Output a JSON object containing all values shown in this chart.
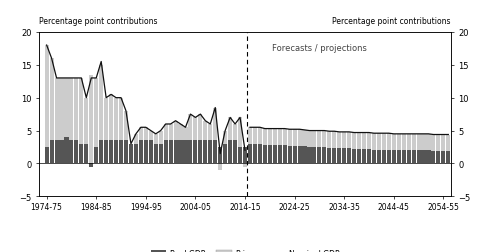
{
  "title_left": "Percentage point contributions",
  "title_right": "Percentage point contributions",
  "forecast_label": "Forecasts / projections",
  "ylim": [
    -5,
    20
  ],
  "yticks": [
    -5,
    0,
    5,
    10,
    15,
    20
  ],
  "dashed_line_x": 2014.5,
  "historical_years": [
    1974,
    1975,
    1976,
    1977,
    1978,
    1979,
    1980,
    1981,
    1982,
    1983,
    1984,
    1985,
    1986,
    1987,
    1988,
    1989,
    1990,
    1991,
    1992,
    1993,
    1994,
    1995,
    1996,
    1997,
    1998,
    1999,
    2000,
    2001,
    2002,
    2003,
    2004,
    2005,
    2006,
    2007,
    2008,
    2009,
    2010,
    2011,
    2012,
    2013,
    2014
  ],
  "real_gdp_hist": [
    2.5,
    3.5,
    3.5,
    3.5,
    4.0,
    3.5,
    3.5,
    3.0,
    3.0,
    -0.5,
    2.5,
    3.5,
    3.5,
    3.5,
    3.5,
    3.5,
    3.5,
    3.0,
    3.0,
    3.5,
    3.5,
    3.5,
    3.0,
    3.0,
    3.5,
    3.5,
    3.5,
    3.5,
    3.5,
    3.5,
    3.5,
    3.5,
    3.5,
    3.5,
    3.5,
    2.5,
    3.0,
    3.5,
    3.5,
    2.5,
    2.5
  ],
  "prices_hist": [
    15.5,
    12.5,
    9.5,
    9.5,
    9.0,
    9.5,
    9.5,
    10.0,
    7.0,
    13.5,
    10.5,
    11.5,
    6.5,
    7.0,
    6.5,
    6.5,
    4.5,
    0.0,
    1.5,
    2.0,
    2.0,
    1.5,
    1.5,
    2.0,
    2.5,
    2.5,
    3.0,
    2.5,
    2.0,
    4.0,
    3.5,
    4.0,
    3.0,
    2.5,
    5.0,
    -1.0,
    2.0,
    3.5,
    2.5,
    4.5,
    -0.5
  ],
  "nominal_gdp_hist": [
    18.0,
    16.0,
    13.0,
    13.0,
    13.0,
    13.0,
    13.0,
    13.0,
    10.0,
    13.0,
    13.0,
    15.5,
    10.0,
    10.5,
    10.0,
    10.0,
    8.0,
    3.0,
    4.5,
    5.5,
    5.5,
    5.0,
    4.5,
    5.0,
    6.0,
    6.0,
    6.5,
    6.0,
    5.5,
    7.5,
    7.0,
    7.5,
    6.5,
    6.0,
    8.5,
    1.5,
    5.0,
    7.0,
    6.0,
    7.0,
    2.0
  ],
  "projection_years": [
    2015,
    2016,
    2017,
    2018,
    2019,
    2020,
    2021,
    2022,
    2023,
    2024,
    2025,
    2026,
    2027,
    2028,
    2029,
    2030,
    2031,
    2032,
    2033,
    2034,
    2035,
    2036,
    2037,
    2038,
    2039,
    2040,
    2041,
    2042,
    2043,
    2044,
    2045,
    2046,
    2047,
    2048,
    2049,
    2050,
    2051,
    2052,
    2053,
    2054,
    2055
  ],
  "real_gdp_proj": [
    3.0,
    3.0,
    3.0,
    2.8,
    2.8,
    2.8,
    2.8,
    2.8,
    2.7,
    2.7,
    2.7,
    2.6,
    2.5,
    2.5,
    2.5,
    2.5,
    2.4,
    2.4,
    2.3,
    2.3,
    2.3,
    2.2,
    2.2,
    2.2,
    2.2,
    2.1,
    2.1,
    2.1,
    2.1,
    2.0,
    2.0,
    2.0,
    2.0,
    2.0,
    2.0,
    2.0,
    2.0,
    1.9,
    1.9,
    1.9,
    1.9
  ],
  "prices_proj": [
    2.5,
    2.5,
    2.5,
    2.5,
    2.5,
    2.5,
    2.5,
    2.5,
    2.5,
    2.5,
    2.5,
    2.5,
    2.5,
    2.5,
    2.5,
    2.5,
    2.5,
    2.5,
    2.5,
    2.5,
    2.5,
    2.5,
    2.5,
    2.5,
    2.5,
    2.5,
    2.5,
    2.5,
    2.5,
    2.5,
    2.5,
    2.5,
    2.5,
    2.5,
    2.5,
    2.5,
    2.5,
    2.5,
    2.5,
    2.5,
    2.5
  ],
  "nominal_gdp_proj": [
    5.5,
    5.5,
    5.5,
    5.3,
    5.3,
    5.3,
    5.3,
    5.3,
    5.2,
    5.2,
    5.2,
    5.1,
    5.0,
    5.0,
    5.0,
    5.0,
    4.9,
    4.9,
    4.8,
    4.8,
    4.8,
    4.7,
    4.7,
    4.7,
    4.7,
    4.6,
    4.6,
    4.6,
    4.6,
    4.5,
    4.5,
    4.5,
    4.5,
    4.5,
    4.5,
    4.5,
    4.5,
    4.4,
    4.4,
    4.4,
    4.4
  ],
  "color_real_gdp": "#555555",
  "color_prices": "#cccccc",
  "color_nominal_gdp": "#111111",
  "xtick_labels": [
    "1974-75",
    "1984-85",
    "1994-95",
    "2004-05",
    "2014-15",
    "2024-25",
    "2034-35",
    "2044-45",
    "2054-55"
  ],
  "xtick_positions": [
    1974,
    1984,
    1994,
    2004,
    2014,
    2024,
    2034,
    2044,
    2054
  ],
  "bar_width": 0.82,
  "figsize": [
    4.9,
    2.53
  ],
  "dpi": 100
}
